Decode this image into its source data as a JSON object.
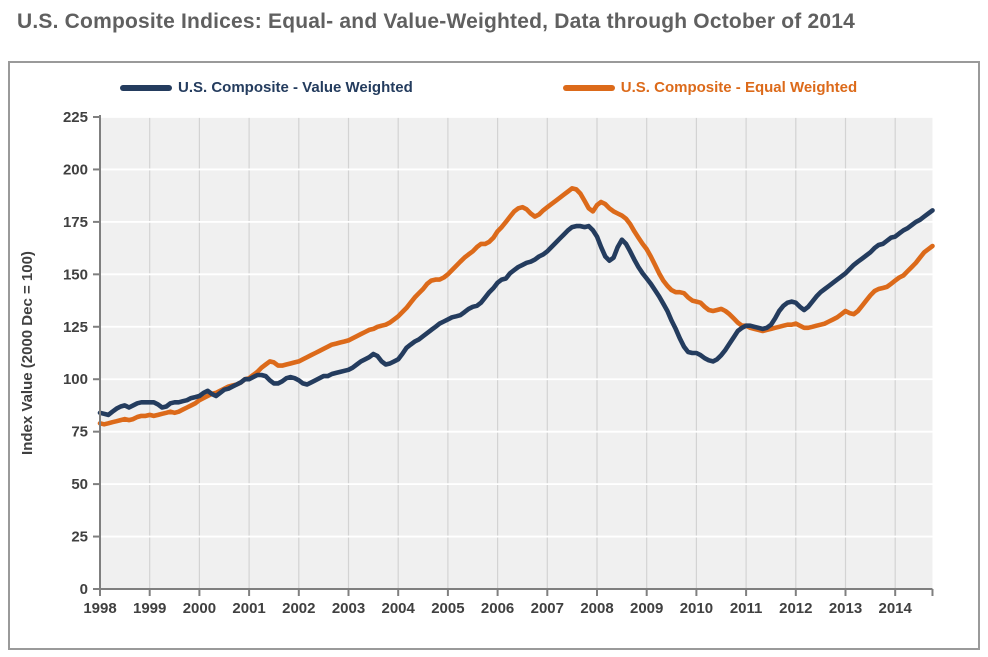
{
  "page_title": "U.S. Composite Indices: Equal- and Value-Weighted, Data through October of 2014",
  "chart_data": {
    "type": "line",
    "title": "U.S. Composite Indices: Equal- and Value-Weighted, Data through October of 2014",
    "xlabel": "",
    "ylabel": "Index Value (2000 Dec = 100)",
    "ylim": [
      0,
      225
    ],
    "y_ticks": [
      0,
      25,
      50,
      75,
      100,
      125,
      150,
      175,
      200,
      225
    ],
    "x_tick_labels": [
      "1998",
      "1999",
      "2000",
      "2001",
      "2002",
      "2003",
      "2004",
      "2005",
      "2006",
      "2007",
      "2008",
      "2009",
      "2010",
      "2011",
      "2012",
      "2013",
      "2014"
    ],
    "x_unit": "month",
    "x_start": "1998-01",
    "x_end": "2014-10",
    "grid": true,
    "legend_position": "top",
    "plot_bg": "#F0F0F0",
    "h_grid_color": "#FFFFFF",
    "v_grid_color": "#D3D3D3",
    "axis_color": "#7F7F7F",
    "tick_label_color": "#404040",
    "title_color": "#606060",
    "series": [
      {
        "name": "U.S. Composite - Value Weighted",
        "color": "#243C5E",
        "values": [
          84,
          83.5,
          83,
          84.5,
          86,
          87,
          87.5,
          86.5,
          87.5,
          88.5,
          89,
          89,
          89,
          89,
          88,
          86.5,
          87,
          88.5,
          89,
          89,
          89.5,
          90,
          91,
          91.5,
          92,
          93.5,
          94.5,
          93,
          92,
          93.5,
          95,
          95.5,
          96.5,
          97.5,
          98.5,
          100,
          100,
          101,
          102,
          102,
          101.5,
          99.5,
          98,
          98,
          99,
          100.5,
          101,
          100.5,
          99.5,
          98,
          97.5,
          98.5,
          99.5,
          100.5,
          101.5,
          101.5,
          102.5,
          103,
          103.5,
          104,
          104.5,
          105.5,
          107,
          108.5,
          109.5,
          110.5,
          112,
          111,
          108.5,
          107,
          107.5,
          108.5,
          109.5,
          112,
          115,
          116.5,
          118,
          119,
          120.5,
          122,
          123.5,
          125,
          126.5,
          127.5,
          128.5,
          129.5,
          130,
          130.5,
          132,
          133.5,
          134.5,
          135,
          136.5,
          139,
          141.5,
          143.5,
          146,
          147.5,
          148,
          150.5,
          152,
          153.5,
          154.5,
          155.5,
          156,
          157,
          158.5,
          159.5,
          161,
          163,
          165,
          167,
          169,
          171,
          172.5,
          173,
          173,
          172.5,
          173,
          171,
          168,
          163,
          158.5,
          156.5,
          158,
          163,
          166.5,
          164.5,
          161,
          157,
          153.5,
          150.5,
          148,
          145.5,
          142.5,
          139.5,
          136,
          132.5,
          128,
          124,
          119.5,
          115.5,
          113,
          112.5,
          112.5,
          111.5,
          110,
          109,
          108.5,
          109.5,
          111.5,
          114,
          117,
          120,
          123,
          124.5,
          125.5,
          125.5,
          125,
          124.5,
          124,
          124.5,
          126,
          129,
          132.5,
          135,
          136.5,
          137,
          136.5,
          134.5,
          133,
          134.5,
          137,
          139.5,
          141.5,
          143,
          144.5,
          146,
          147.5,
          149,
          150.5,
          152.5,
          154.5,
          156,
          157.5,
          159,
          160.5,
          162.5,
          164,
          164.5,
          166,
          167.5,
          168,
          169.5,
          171,
          172,
          173.5,
          175,
          176,
          177.5,
          179,
          180.5
        ]
      },
      {
        "name": "U.S. Composite - Equal Weighted",
        "color": "#DC6A1A",
        "values": [
          79,
          78.5,
          79,
          79.5,
          80,
          80.5,
          81,
          80.5,
          81,
          82,
          82.5,
          82.5,
          83,
          82.5,
          83,
          83.5,
          84,
          84.5,
          84,
          84.5,
          85.5,
          86.5,
          87.5,
          88.5,
          90,
          91,
          92,
          93,
          93.5,
          94.5,
          95.5,
          96.5,
          97,
          97.5,
          98.5,
          100,
          100.5,
          102,
          103.5,
          105.5,
          107,
          108.5,
          108,
          106.5,
          106.5,
          107,
          107.5,
          108,
          108.5,
          109.5,
          110.5,
          111.5,
          112.5,
          113.5,
          114.5,
          115.5,
          116.5,
          117,
          117.5,
          118,
          118.5,
          119.5,
          120.5,
          121.5,
          122.5,
          123.5,
          124,
          125,
          125.5,
          126,
          127,
          128.5,
          130,
          132,
          134,
          136.5,
          139,
          141,
          143,
          145.5,
          147,
          147.5,
          147.5,
          148.5,
          150,
          152,
          154,
          156,
          158,
          159.5,
          161,
          163,
          164.5,
          164.5,
          165.5,
          167.5,
          170.5,
          172.5,
          175,
          177.5,
          180,
          181.5,
          182,
          181,
          179,
          177.5,
          178.5,
          180.5,
          182,
          183.5,
          185,
          186.5,
          188,
          189.5,
          191,
          190.5,
          188.5,
          185,
          181.5,
          180,
          183,
          184.5,
          183.5,
          181.5,
          180,
          179,
          178,
          176.5,
          174,
          170.5,
          167.5,
          164.5,
          162,
          158.5,
          154.5,
          150.5,
          147,
          144.5,
          142.5,
          141.5,
          141.5,
          141,
          139,
          137.5,
          137,
          136.5,
          134.5,
          133,
          132.5,
          133,
          133.5,
          132.5,
          131,
          129,
          127,
          125.5,
          125.5,
          124.5,
          124,
          123.5,
          123,
          123.5,
          124,
          124.5,
          125,
          125.5,
          126,
          126,
          126.5,
          125.5,
          124.5,
          124.5,
          125,
          125.5,
          126,
          126.5,
          127.5,
          128.5,
          129.5,
          131,
          132.5,
          131.5,
          131,
          132.5,
          135,
          137.5,
          140,
          142,
          143,
          143.5,
          144,
          145.5,
          147,
          148.5,
          149.5,
          151.5,
          153.5,
          155.5,
          158,
          160.5,
          162,
          163.5
        ]
      }
    ]
  }
}
